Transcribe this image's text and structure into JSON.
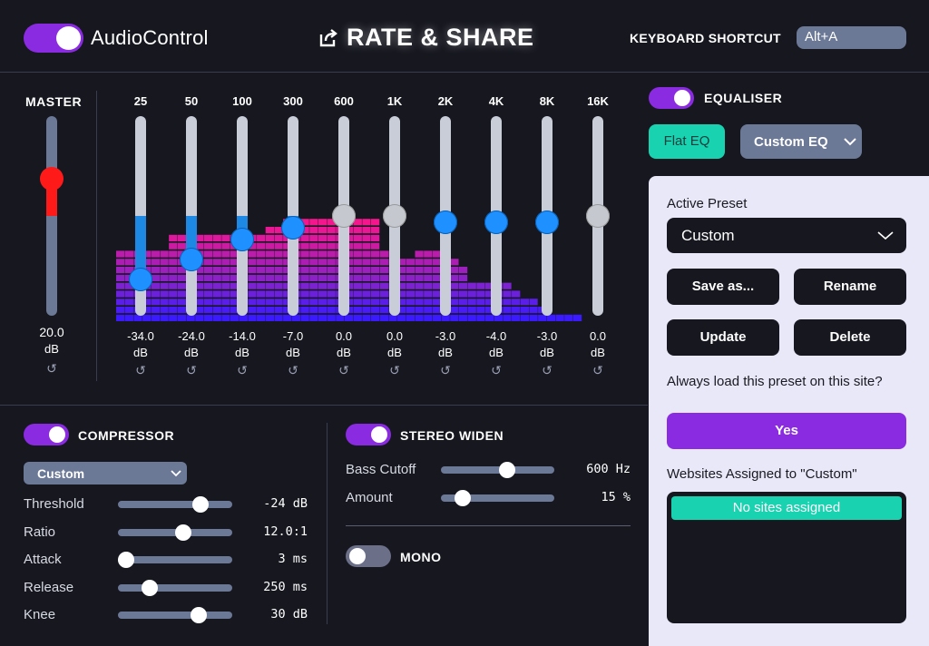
{
  "header": {
    "app_name": "AudioControl",
    "rate_share": "RATE & SHARE",
    "shortcut_label": "KEYBOARD SHORTCUT",
    "shortcut_value": "Alt+A"
  },
  "master": {
    "label": "MASTER",
    "value": "20.0",
    "unit": "dB",
    "level": 0.33
  },
  "eq": {
    "bands": [
      {
        "freq": "25",
        "value": "-34.0",
        "unit": "dB",
        "pos": 0.82,
        "color": "blue"
      },
      {
        "freq": "50",
        "value": "-24.0",
        "unit": "dB",
        "pos": 0.72,
        "color": "blue"
      },
      {
        "freq": "100",
        "value": "-14.0",
        "unit": "dB",
        "pos": 0.62,
        "color": "blue"
      },
      {
        "freq": "300",
        "value": "-7.0",
        "unit": "dB",
        "pos": 0.56,
        "color": "blue"
      },
      {
        "freq": "600",
        "value": "0.0",
        "unit": "dB",
        "pos": 0.5,
        "color": "grey"
      },
      {
        "freq": "1K",
        "value": "0.0",
        "unit": "dB",
        "pos": 0.5,
        "color": "grey"
      },
      {
        "freq": "2K",
        "value": "-3.0",
        "unit": "dB",
        "pos": 0.53,
        "color": "blue"
      },
      {
        "freq": "4K",
        "value": "-4.0",
        "unit": "dB",
        "pos": 0.53,
        "color": "blue"
      },
      {
        "freq": "8K",
        "value": "-3.0",
        "unit": "dB",
        "pos": 0.53,
        "color": "blue"
      },
      {
        "freq": "16K",
        "value": "0.0",
        "unit": "dB",
        "pos": 0.5,
        "color": "grey"
      }
    ],
    "spectrum": [
      9,
      9,
      9,
      9,
      9,
      9,
      11,
      11,
      11,
      11,
      11,
      11,
      11,
      11,
      11,
      11,
      11,
      12,
      12,
      13,
      13,
      13,
      13,
      13,
      13,
      13,
      13,
      13,
      13,
      13,
      9,
      9,
      8,
      8,
      9,
      9,
      9,
      8,
      8,
      7,
      5,
      5,
      5,
      5,
      5,
      4,
      3,
      3,
      2,
      1,
      1,
      1,
      1,
      0,
      0,
      0,
      0,
      0
    ]
  },
  "equaliser": {
    "label": "EQUALISER",
    "enabled": true,
    "flat_label": "Flat EQ",
    "custom_label": "Custom EQ"
  },
  "preset_panel": {
    "active_label": "Active Preset",
    "active_value": "Custom",
    "save_as": "Save as...",
    "rename": "Rename",
    "update": "Update",
    "delete": "Delete",
    "always_load": "Always load this preset on this site?",
    "yes": "Yes",
    "assigned_label": "Websites Assigned to \"Custom\"",
    "no_sites": "No sites assigned"
  },
  "compressor": {
    "label": "COMPRESSOR",
    "enabled": true,
    "preset": "Custom",
    "params": [
      {
        "name": "Threshold",
        "value": "-24 dB",
        "pos": 0.72
      },
      {
        "name": "Ratio",
        "value": "12.0:1",
        "pos": 0.57
      },
      {
        "name": "Attack",
        "value": "3 ms",
        "pos": 0.07
      },
      {
        "name": "Release",
        "value": "250 ms",
        "pos": 0.28
      },
      {
        "name": "Knee",
        "value": "30 dB",
        "pos": 0.71
      }
    ]
  },
  "stereo_widen": {
    "label": "STEREO WIDEN",
    "enabled": true,
    "params": [
      {
        "name": "Bass Cutoff",
        "value": "600 Hz",
        "pos": 0.58
      },
      {
        "name": "Amount",
        "value": "15 %",
        "pos": 0.19
      }
    ]
  },
  "mono": {
    "label": "MONO",
    "enabled": false
  },
  "colors": {
    "accent": "#8a2be2",
    "teal": "#19d3b0",
    "slider_blue": "#1e90ff",
    "master_red": "#ff1a1a",
    "panel_bg": "#e8e8f8"
  }
}
